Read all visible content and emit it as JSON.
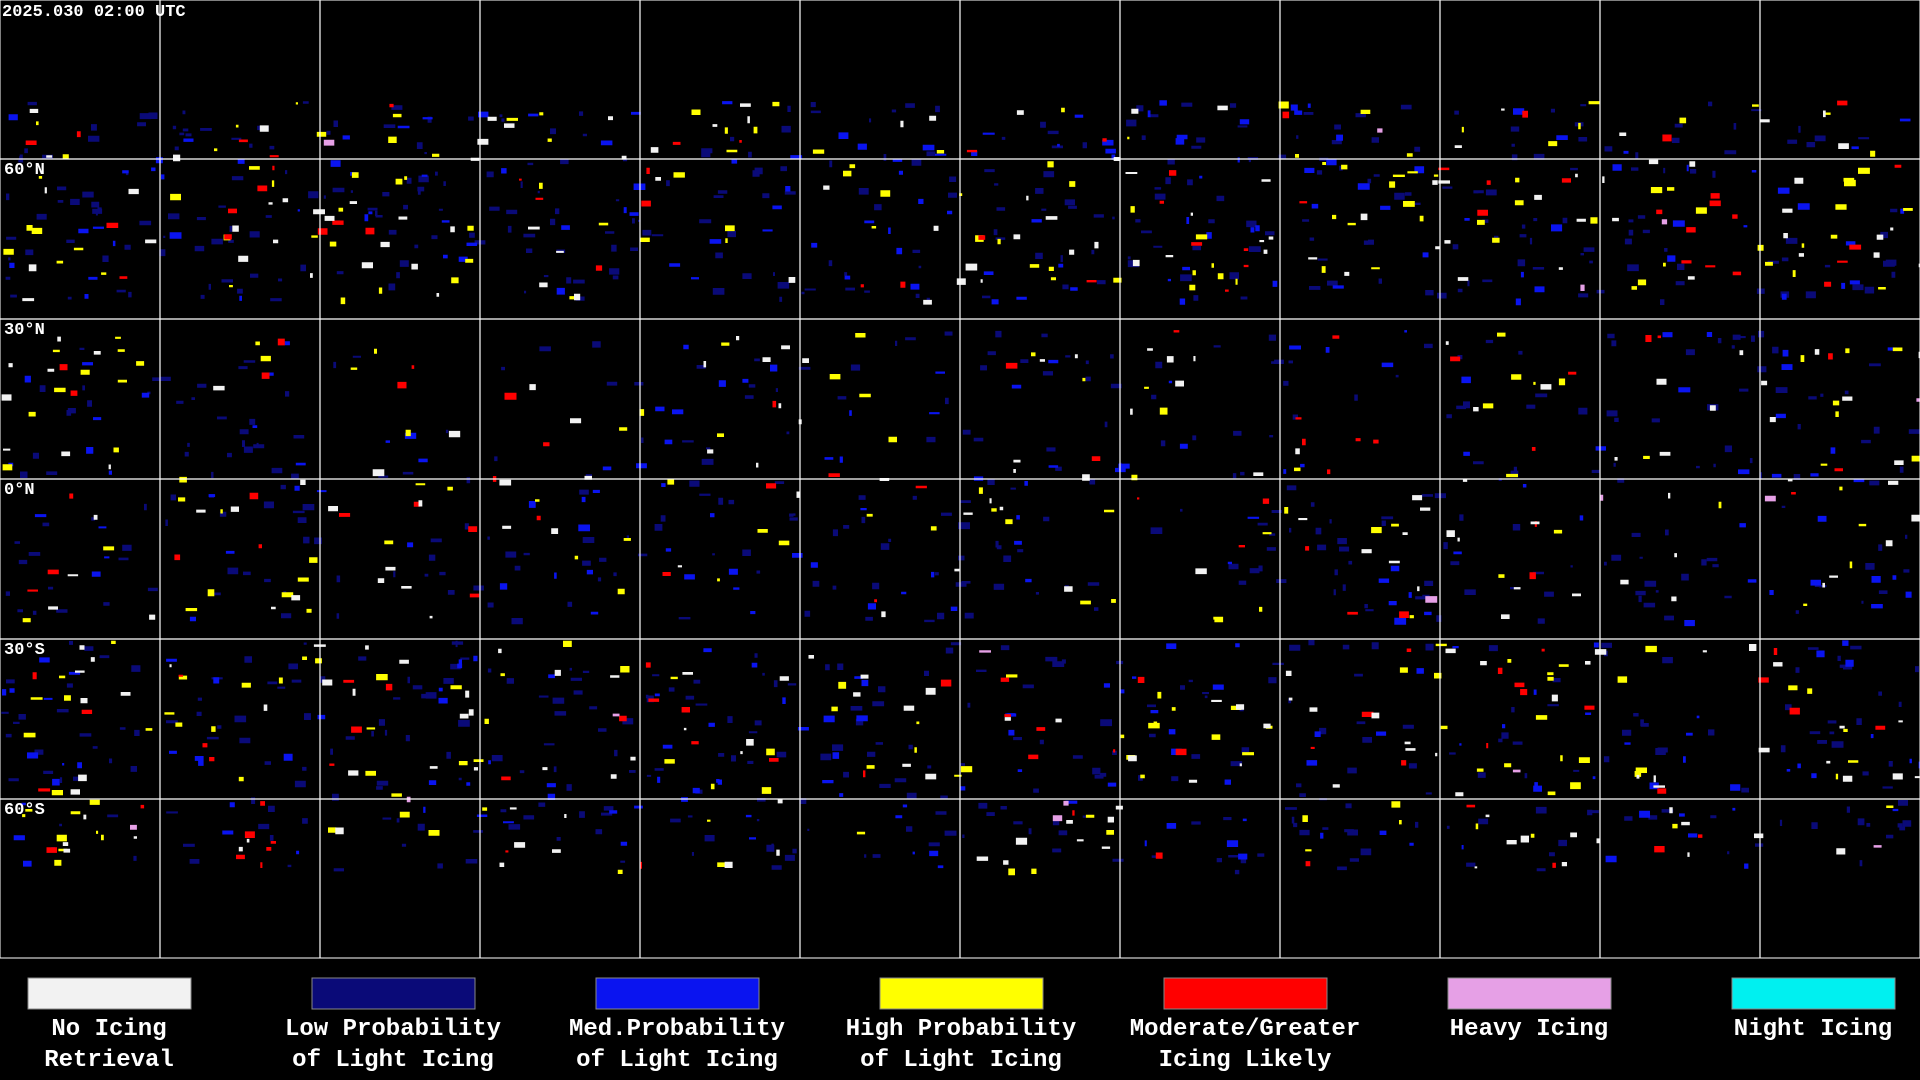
{
  "header": {
    "timestamp": "2025.030 02:00 UTC"
  },
  "lat_labels": [
    "60°N",
    "30°N",
    "0°N",
    "30°S",
    "60°S"
  ],
  "legend": [
    {
      "lines": [
        "No Icing",
        "Retrieval"
      ],
      "color": "#f2f2f2"
    },
    {
      "lines": [
        "Low Probability",
        "of Light Icing"
      ],
      "color": "#0a0a78"
    },
    {
      "lines": [
        "Med.Probability",
        "of Light Icing"
      ],
      "color": "#0a14f0"
    },
    {
      "lines": [
        "High Probability",
        "of Light Icing"
      ],
      "color": "#ffff00"
    },
    {
      "lines": [
        "Moderate/Greater",
        "Icing Likely"
      ],
      "color": "#ff0000"
    },
    {
      "lines": [
        "Heavy Icing"
      ],
      "color": "#e6a0e6"
    },
    {
      "lines": [
        "Night Icing"
      ],
      "color": "#00f0f0"
    }
  ]
}
